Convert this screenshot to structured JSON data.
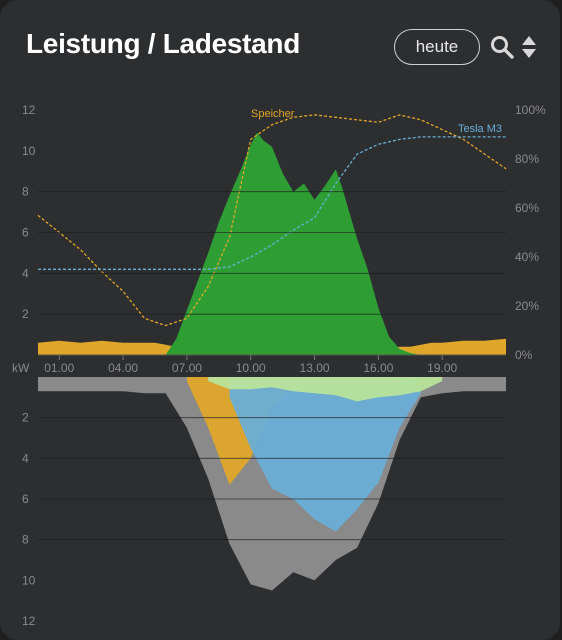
{
  "header": {
    "title": "Leistung / Ladestand",
    "today_button": "heute",
    "search_icon": "search-icon",
    "sort_icon": "sort-updown-icon"
  },
  "colors": {
    "background": "#2d2e30",
    "pv": "#2e9e34",
    "grid_feed": "#e0a62a",
    "grid_draw": "#8a8a8a",
    "house": "#6aaed6",
    "battery_charge": "#b8e39a",
    "storage_line": "#e0a62a",
    "car_line": "#6aaed6"
  },
  "chart_data": {
    "type": "area",
    "x_ticks": [
      "01.00",
      "04.00",
      "07.00",
      "10.00",
      "13.00",
      "16.00",
      "19.00"
    ],
    "x_range_hours": [
      0,
      22
    ],
    "ylabel": "kW",
    "top_panel": {
      "y_left_ticks": [
        "2",
        "4",
        "6",
        "8",
        "10",
        "12"
      ],
      "y_left_range": [
        0,
        12
      ],
      "y_right_ticks": [
        "0%",
        "20%",
        "40%",
        "60%",
        "80%",
        "100%"
      ],
      "y_right_range": [
        0,
        100
      ],
      "series": [
        {
          "name": "",
          "kind": "area",
          "x": [
            0,
            1,
            2,
            3,
            4,
            5,
            5.5,
            6,
            6.5,
            7,
            7.5,
            8,
            8.5,
            9,
            9.5,
            10,
            10.3,
            10.6,
            11,
            11.5,
            12,
            12.5,
            13,
            13.5,
            14,
            14.3,
            14.6,
            15,
            15.5,
            16,
            16.5,
            17,
            17.5,
            18,
            18.5,
            19,
            20,
            21,
            22
          ],
          "values": [
            0.6,
            0.7,
            0.6,
            0.7,
            0.6,
            0.6,
            0.6,
            0.5,
            0.4,
            0.3,
            0.3,
            0.3,
            0.3,
            0.3,
            0.4,
            0.3,
            0.2,
            0.2,
            0.2,
            0.2,
            0.2,
            0.2,
            0.2,
            0.2,
            0.2,
            0.2,
            0.2,
            0.2,
            0.3,
            0.3,
            0.3,
            0.4,
            0.4,
            0.5,
            0.6,
            0.6,
            0.7,
            0.7,
            0.8
          ]
        },
        {
          "name": "",
          "kind": "area",
          "x": [
            6,
            6.5,
            7,
            7.5,
            8,
            8.5,
            9,
            9.5,
            10,
            10.3,
            10.6,
            11,
            11.5,
            12,
            12.5,
            13,
            13.5,
            14,
            14.3,
            14.6,
            15,
            15.5,
            16,
            16.5,
            17,
            17.5,
            18
          ],
          "values": [
            0,
            0.8,
            2.2,
            3.6,
            5.0,
            6.5,
            7.8,
            9.0,
            10.3,
            10.9,
            10.5,
            10.2,
            8.9,
            8.0,
            8.4,
            7.6,
            8.3,
            9.1,
            8.2,
            7.1,
            5.7,
            4.2,
            2.3,
            0.9,
            0.3,
            0.1,
            0
          ]
        },
        {
          "name": "Speicher",
          "kind": "line",
          "x": [
            0,
            1,
            2,
            3,
            4,
            5,
            6,
            7,
            8,
            9,
            10,
            11,
            12,
            13,
            14,
            15,
            16,
            17,
            18,
            19,
            20,
            21,
            22
          ],
          "values": [
            57,
            50,
            43,
            34,
            26,
            15,
            12,
            15,
            28,
            48,
            88,
            94,
            97,
            98,
            97,
            96,
            95,
            98,
            96,
            92,
            88,
            82,
            76
          ]
        },
        {
          "name": "Tesla M3",
          "kind": "line",
          "x": [
            0,
            1,
            2,
            3,
            4,
            5,
            6,
            7,
            8,
            9,
            10,
            11,
            12,
            13,
            14,
            15,
            16,
            17,
            18,
            19,
            20,
            21,
            22
          ],
          "values": [
            35,
            35,
            35,
            35,
            35,
            35,
            35,
            35,
            35,
            36,
            40,
            45,
            51,
            56,
            70,
            82,
            86,
            88,
            89,
            89,
            89,
            89,
            89
          ]
        }
      ]
    },
    "bottom_panel": {
      "y_ticks": [
        "2",
        "4",
        "6",
        "8",
        "10",
        "12"
      ],
      "y_range": [
        0,
        12
      ],
      "series": [
        {
          "name": "",
          "kind": "area",
          "x": [
            0,
            1,
            2,
            3,
            4,
            5,
            6,
            7,
            8,
            9,
            10,
            11,
            12,
            13,
            14,
            15,
            16,
            17,
            18,
            19,
            20,
            21,
            22
          ],
          "values": [
            0.7,
            0.7,
            0.7,
            0.7,
            0.7,
            0.8,
            0.8,
            2.5,
            5.0,
            8.2,
            10.2,
            10.5,
            9.6,
            10.0,
            9.0,
            8.4,
            6.2,
            3.1,
            1.0,
            0.8,
            0.7,
            0.7,
            0.7
          ]
        },
        {
          "name": "",
          "kind": "area",
          "x": [
            7,
            8,
            9,
            10,
            11,
            12,
            13,
            14,
            15,
            16,
            17,
            18
          ],
          "values": [
            0.2,
            2.5,
            5.3,
            4.0,
            1.5,
            0.6,
            0.5,
            0.6,
            0.6,
            0.5,
            0.3,
            0.1
          ]
        },
        {
          "name": "",
          "kind": "area",
          "x": [
            9,
            10,
            11,
            12,
            13,
            14,
            15,
            16,
            17,
            18
          ],
          "values": [
            1.0,
            3.5,
            5.5,
            6.0,
            7.0,
            7.6,
            6.5,
            5.2,
            2.5,
            0.8
          ]
        },
        {
          "name": "",
          "kind": "area",
          "x": [
            8,
            9,
            10,
            11,
            12,
            13,
            14,
            15,
            16,
            17,
            18,
            19
          ],
          "values": [
            0.2,
            0.6,
            0.6,
            0.5,
            0.7,
            0.8,
            0.9,
            1.2,
            1.0,
            0.9,
            0.7,
            0.2
          ]
        }
      ]
    }
  }
}
